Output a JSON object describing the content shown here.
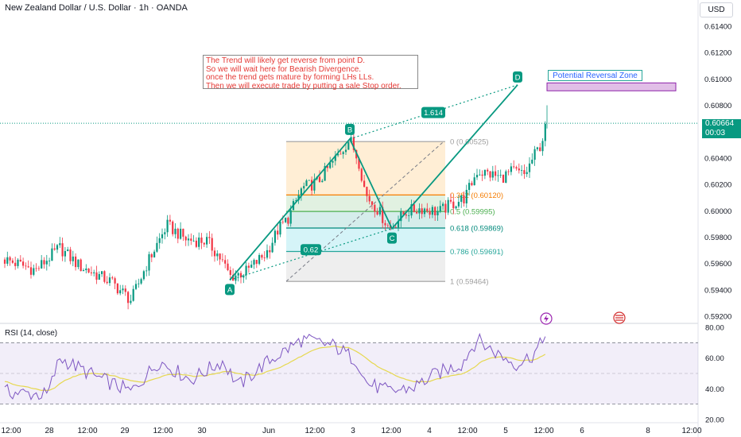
{
  "header": {
    "title": "New Zealand Dollar / U.S. Dollar · 1h · OANDA",
    "currency_button": "USD"
  },
  "price_tag": {
    "price": "0.60664",
    "countdown": "00:03"
  },
  "annotation": {
    "lines": [
      "The Trend will likely get reverse from point D.",
      "So we will wait here for Bearish Divergence.",
      "once the trend gets mature by forming LHs LLs.",
      "Then we will execute trade by putting a sale Stop order."
    ]
  },
  "reversal_zone": {
    "label": "Potential Reversal Zone",
    "price_low": 0.6091,
    "price_high": 0.6097
  },
  "chart_data": {
    "type": "candlestick",
    "price_axis": {
      "range": [
        0.5908,
        0.6157
      ],
      "ticks": [
        "0.61400",
        "0.61200",
        "0.61000",
        "0.60800",
        "0.60400",
        "0.60200",
        "0.60000",
        "0.59800",
        "0.59600",
        "0.59400",
        "0.59200"
      ]
    },
    "time_axis": {
      "labels": [
        "12:00",
        "28",
        "12:00",
        "29",
        "12:00",
        "30",
        "Jun",
        "12:00",
        "3",
        "12:00",
        "4",
        "12:00",
        "5",
        "12:00",
        "6",
        "8",
        "12:00"
      ]
    },
    "harmonic_pattern": {
      "points": [
        {
          "label": "A",
          "price": 0.59475
        },
        {
          "label": "B",
          "price": 0.60545
        },
        {
          "label": "C",
          "price": 0.59865
        },
        {
          "label": "D",
          "price": 0.60955
        }
      ],
      "ratios": [
        "0.62",
        "1.614"
      ]
    },
    "fibonacci": [
      {
        "label": "0 (0.60525)",
        "price": 0.60525,
        "color": "#9e9e9e"
      },
      {
        "label": "0.382 (0.60120)",
        "price": 0.6012,
        "color": "#f57c00"
      },
      {
        "label": "0.5 (0.59995)",
        "price": 0.59995,
        "color": "#4caf50"
      },
      {
        "label": "0.618 (0.59869)",
        "price": 0.59869,
        "color": "#00897b"
      },
      {
        "label": "0.786 (0.59691)",
        "price": 0.59691,
        "color": "#26a69a"
      },
      {
        "label": "1 (0.59464)",
        "price": 0.59464,
        "color": "#9e9e9e"
      }
    ],
    "last_price": 0.60664,
    "rsi": {
      "label": "RSI (14, close)",
      "range": [
        20,
        85
      ],
      "ticks": [
        "80.00",
        "60.00",
        "40.00",
        "20.00"
      ],
      "bands": [
        70,
        30
      ],
      "last_value": 74
    },
    "colors": {
      "up": "#089981",
      "down": "#f23645",
      "rsi": "#7e57c2",
      "rsi_ma": "#e6d84f"
    }
  }
}
